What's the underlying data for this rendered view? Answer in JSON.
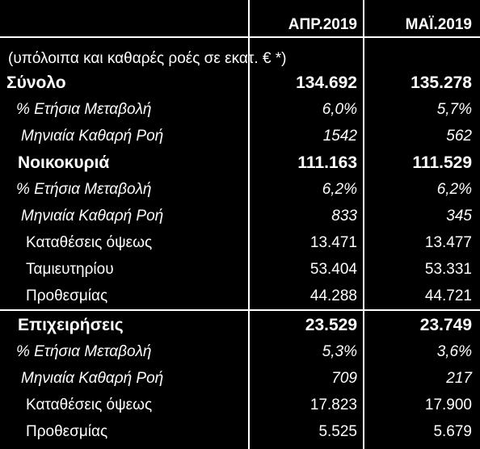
{
  "columns": [
    "ΑΠΡ.2019",
    "ΜΑΪ.2019"
  ],
  "note": "(υπόλοιπα  και καθαρές ροές σε εκατ. € *)",
  "rows": [
    {
      "label": "Σύνολο",
      "v1": "134.692",
      "v2": "135.278"
    },
    {
      "label": "% Ετήσια Μεταβολή",
      "v1": "6,0%",
      "v2": "5,7%"
    },
    {
      "label": "Μηνιαία Καθαρή Ροή",
      "v1": "1542",
      "v2": "562"
    },
    {
      "label": "Νοικοκυριά",
      "v1": "111.163",
      "v2": "111.529"
    },
    {
      "label": "% Ετήσια Μεταβολή",
      "v1": "6,2%",
      "v2": "6,2%"
    },
    {
      "label": "Μηνιαία Καθαρή Ροή",
      "v1": "833",
      "v2": "345"
    },
    {
      "label": "Καταθέσεις όψεως",
      "v1": "13.471",
      "v2": "13.477"
    },
    {
      "label": "Ταμιευτηρίου",
      "v1": "53.404",
      "v2": "53.331"
    },
    {
      "label": "Προθεσμίας",
      "v1": "44.288",
      "v2": "44.721"
    },
    {
      "label": "Επιχειρήσεις",
      "v1": "23.529",
      "v2": "23.749"
    },
    {
      "label": "% Ετήσια Μεταβολή",
      "v1": "5,3%",
      "v2": "3,6%"
    },
    {
      "label": "Μηνιαία Καθαρή Ροή",
      "v1": "709",
      "v2": "217"
    },
    {
      "label": "Καταθέσεις όψεως",
      "v1": "17.823",
      "v2": "17.900"
    },
    {
      "label": "Προθεσμίας",
      "v1": "5.525",
      "v2": "5.679"
    }
  ]
}
